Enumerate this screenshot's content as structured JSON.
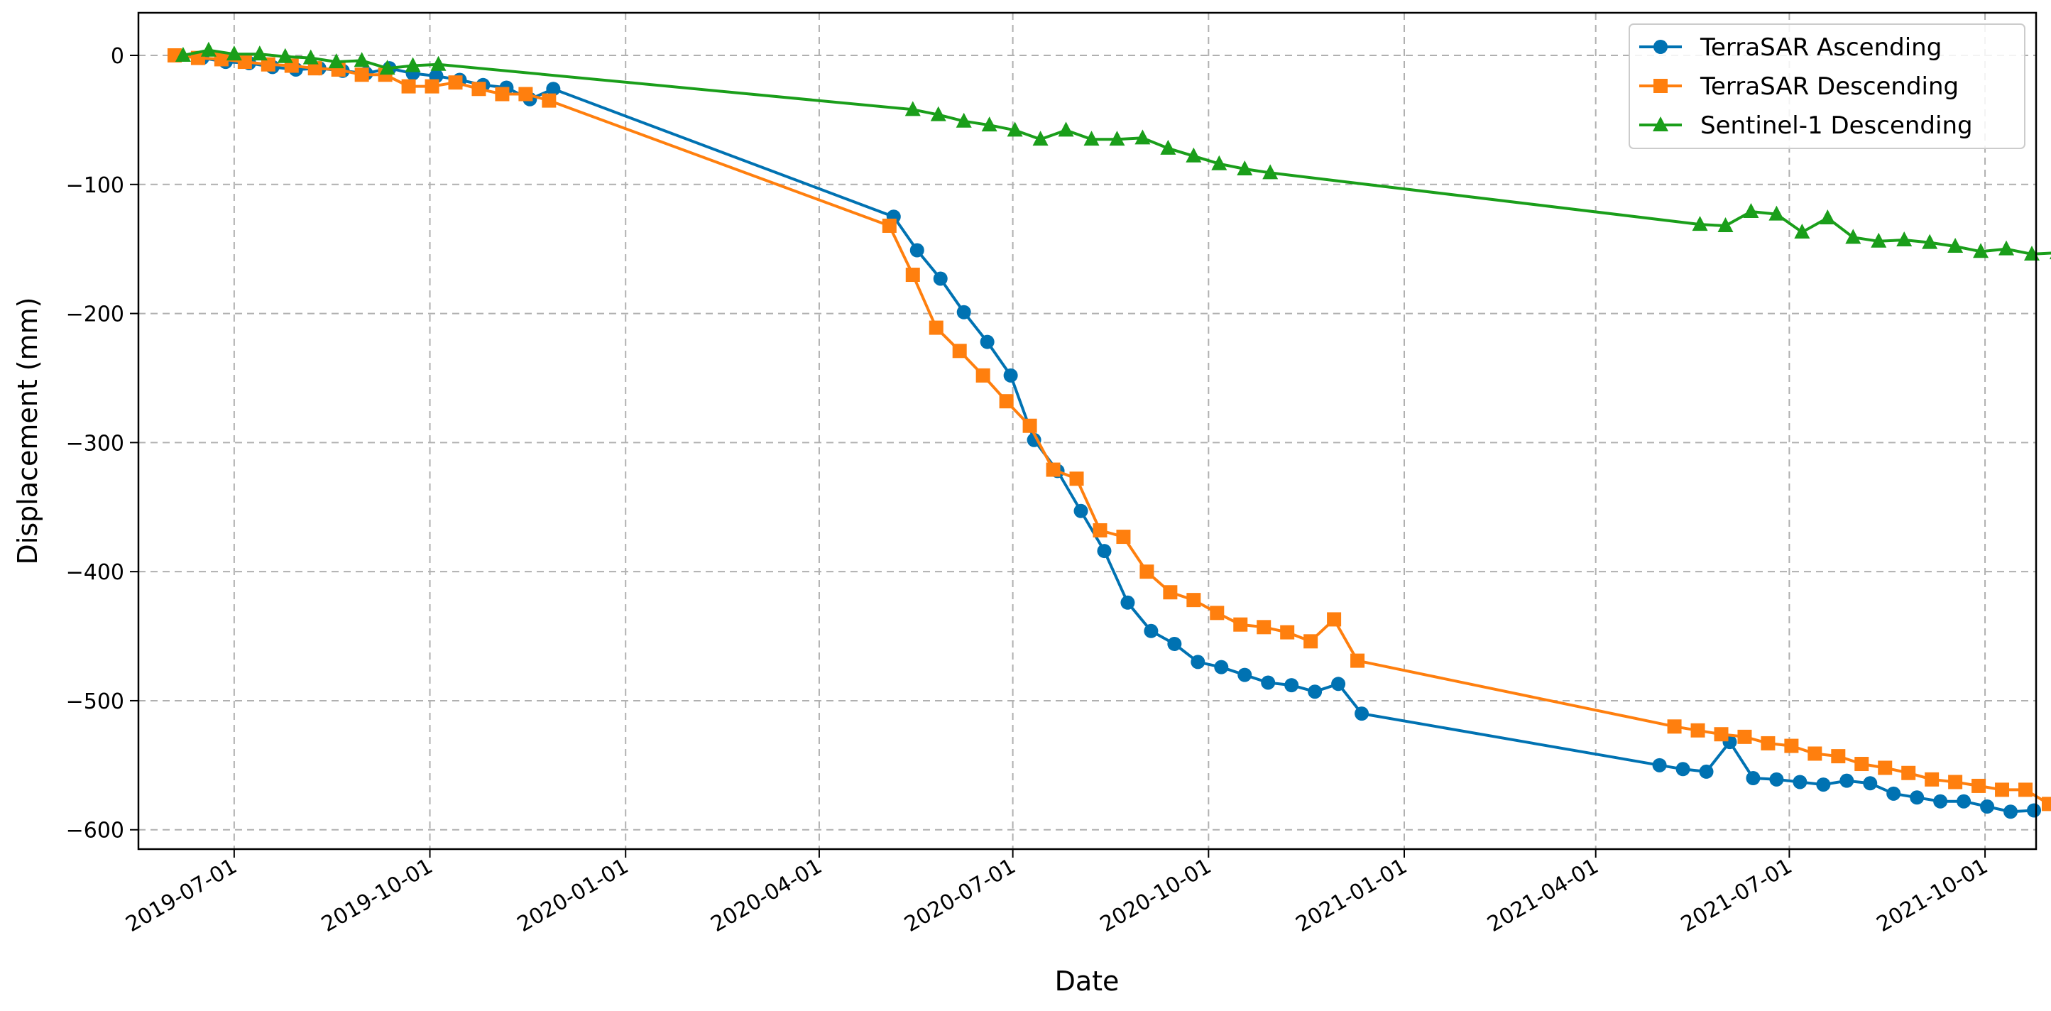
{
  "chart_data": {
    "type": "line",
    "title": "",
    "xlabel": "Date",
    "ylabel": "Displacement (mm)",
    "x_type": "date",
    "xlim": [
      "2019-05-17",
      "2021-10-25"
    ],
    "ylim": [
      -615,
      33
    ],
    "x_ticks": [
      "2019-07-01",
      "2019-10-01",
      "2020-01-01",
      "2020-04-01",
      "2020-07-01",
      "2020-10-01",
      "2021-01-01",
      "2021-04-01",
      "2021-07-01",
      "2021-10-01"
    ],
    "y_ticks": [
      0,
      -100,
      -200,
      -300,
      -400,
      -500,
      -600
    ],
    "grid": true,
    "legend_position": "top-right",
    "series": [
      {
        "name": "TerraSAR Ascending",
        "color": "#0072b2",
        "marker": "circle",
        "points": [
          [
            "2019-06-05",
            0
          ],
          [
            "2019-06-16",
            -2
          ],
          [
            "2019-06-27",
            -5
          ],
          [
            "2019-07-08",
            -6
          ],
          [
            "2019-07-19",
            -9
          ],
          [
            "2019-07-30",
            -11
          ],
          [
            "2019-08-10",
            -10
          ],
          [
            "2019-08-21",
            -12
          ],
          [
            "2019-09-01",
            -14
          ],
          [
            "2019-09-12",
            -10
          ],
          [
            "2019-09-23",
            -14
          ],
          [
            "2019-10-04",
            -16
          ],
          [
            "2019-10-15",
            -19
          ],
          [
            "2019-10-26",
            -23
          ],
          [
            "2019-11-06",
            -25
          ],
          [
            "2019-11-17",
            -34
          ],
          [
            "2019-11-28",
            -26
          ],
          [
            "2020-05-06",
            -125
          ],
          [
            "2020-05-17",
            -151
          ],
          [
            "2020-05-28",
            -173
          ],
          [
            "2020-06-08",
            -199
          ],
          [
            "2020-06-19",
            -222
          ],
          [
            "2020-06-30",
            -248
          ],
          [
            "2020-07-11",
            -298
          ],
          [
            "2020-07-22",
            -322
          ],
          [
            "2020-08-02",
            -353
          ],
          [
            "2020-08-13",
            -384
          ],
          [
            "2020-08-24",
            -424
          ],
          [
            "2020-09-04",
            -446
          ],
          [
            "2020-09-15",
            -456
          ],
          [
            "2020-09-26",
            -470
          ],
          [
            "2020-10-07",
            -474
          ],
          [
            "2020-10-18",
            -480
          ],
          [
            "2020-10-29",
            -486
          ],
          [
            "2020-11-09",
            -488
          ],
          [
            "2020-11-20",
            -493
          ],
          [
            "2020-12-01",
            -487
          ],
          [
            "2020-12-12",
            -510
          ],
          [
            "2021-05-01",
            -550
          ],
          [
            "2021-05-12",
            -553
          ],
          [
            "2021-05-23",
            -555
          ],
          [
            "2021-06-03",
            -532
          ],
          [
            "2021-06-14",
            -560
          ],
          [
            "2021-06-25",
            -561
          ],
          [
            "2021-07-06",
            -563
          ],
          [
            "2021-07-17",
            -565
          ],
          [
            "2021-07-28",
            -562
          ],
          [
            "2021-08-08",
            -564
          ],
          [
            "2021-08-19",
            -572
          ],
          [
            "2021-08-30",
            -575
          ],
          [
            "2021-09-10",
            -578
          ],
          [
            "2021-09-21",
            -578
          ],
          [
            "2021-10-02",
            -582
          ],
          [
            "2021-10-13",
            -586
          ],
          [
            "2021-10-24",
            -585
          ]
        ]
      },
      {
        "name": "TerraSAR Descending",
        "color": "#ff7f0e",
        "marker": "square",
        "points": [
          [
            "2019-06-03",
            0
          ],
          [
            "2019-06-14",
            -2
          ],
          [
            "2019-06-25",
            -3
          ],
          [
            "2019-07-06",
            -5
          ],
          [
            "2019-07-17",
            -7
          ],
          [
            "2019-07-28",
            -8
          ],
          [
            "2019-08-08",
            -10
          ],
          [
            "2019-08-19",
            -11
          ],
          [
            "2019-08-30",
            -15
          ],
          [
            "2019-09-10",
            -15
          ],
          [
            "2019-09-21",
            -24
          ],
          [
            "2019-10-02",
            -24
          ],
          [
            "2019-10-13",
            -21
          ],
          [
            "2019-10-24",
            -26
          ],
          [
            "2019-11-04",
            -30
          ],
          [
            "2019-11-15",
            -30
          ],
          [
            "2019-11-26",
            -35
          ],
          [
            "2020-05-04",
            -132
          ],
          [
            "2020-05-15",
            -170
          ],
          [
            "2020-05-26",
            -211
          ],
          [
            "2020-06-06",
            -229
          ],
          [
            "2020-06-17",
            -248
          ],
          [
            "2020-06-28",
            -268
          ],
          [
            "2020-07-09",
            -287
          ],
          [
            "2020-07-20",
            -321
          ],
          [
            "2020-07-31",
            -328
          ],
          [
            "2020-08-11",
            -368
          ],
          [
            "2020-08-22",
            -373
          ],
          [
            "2020-09-02",
            -400
          ],
          [
            "2020-09-13",
            -416
          ],
          [
            "2020-09-24",
            -422
          ],
          [
            "2020-10-05",
            -432
          ],
          [
            "2020-10-16",
            -441
          ],
          [
            "2020-10-27",
            -443
          ],
          [
            "2020-11-07",
            -447
          ],
          [
            "2020-11-18",
            -454
          ],
          [
            "2020-11-29",
            -437
          ],
          [
            "2020-12-10",
            -469
          ],
          [
            "2021-05-08",
            -520
          ],
          [
            "2021-05-19",
            -523
          ],
          [
            "2021-05-30",
            -526
          ],
          [
            "2021-06-10",
            -528
          ],
          [
            "2021-06-21",
            -533
          ],
          [
            "2021-07-02",
            -535
          ],
          [
            "2021-07-13",
            -541
          ],
          [
            "2021-07-24",
            -543
          ],
          [
            "2021-08-04",
            -549
          ],
          [
            "2021-08-15",
            -552
          ],
          [
            "2021-08-26",
            -556
          ],
          [
            "2021-09-06",
            -561
          ],
          [
            "2021-09-17",
            -563
          ],
          [
            "2021-09-28",
            -566
          ],
          [
            "2021-10-09",
            -569
          ],
          [
            "2021-10-20",
            -569
          ],
          [
            "2021-10-31",
            -580
          ]
        ]
      },
      {
        "name": "Sentinel-1 Descending",
        "color": "#1a9e1a",
        "marker": "triangle",
        "points": [
          [
            "2019-06-07",
            0
          ],
          [
            "2019-06-19",
            4
          ],
          [
            "2019-07-01",
            1
          ],
          [
            "2019-07-13",
            1
          ],
          [
            "2019-07-25",
            -1
          ],
          [
            "2019-08-06",
            -2
          ],
          [
            "2019-08-18",
            -5
          ],
          [
            "2019-08-30",
            -4
          ],
          [
            "2019-09-11",
            -10
          ],
          [
            "2019-09-23",
            -8
          ],
          [
            "2019-10-05",
            -7
          ],
          [
            "2020-05-15",
            -42
          ],
          [
            "2020-05-27",
            -46
          ],
          [
            "2020-06-08",
            -51
          ],
          [
            "2020-06-20",
            -54
          ],
          [
            "2020-07-02",
            -58
          ],
          [
            "2020-07-14",
            -65
          ],
          [
            "2020-07-26",
            -58
          ],
          [
            "2020-08-07",
            -65
          ],
          [
            "2020-08-19",
            -65
          ],
          [
            "2020-08-31",
            -64
          ],
          [
            "2020-09-12",
            -72
          ],
          [
            "2020-09-24",
            -78
          ],
          [
            "2020-10-06",
            -84
          ],
          [
            "2020-10-18",
            -88
          ],
          [
            "2020-10-30",
            -91
          ],
          [
            "2021-05-20",
            -131
          ],
          [
            "2021-06-01",
            -132
          ],
          [
            "2021-06-13",
            -121
          ],
          [
            "2021-06-25",
            -123
          ],
          [
            "2021-07-07",
            -137
          ],
          [
            "2021-07-19",
            -126
          ],
          [
            "2021-07-31",
            -141
          ],
          [
            "2021-08-12",
            -144
          ],
          [
            "2021-08-24",
            -143
          ],
          [
            "2021-09-05",
            -145
          ],
          [
            "2021-09-17",
            -148
          ],
          [
            "2021-09-29",
            -152
          ],
          [
            "2021-10-11",
            -150
          ],
          [
            "2021-10-23",
            -154
          ],
          [
            "2021-11-04",
            -153
          ]
        ]
      }
    ]
  }
}
